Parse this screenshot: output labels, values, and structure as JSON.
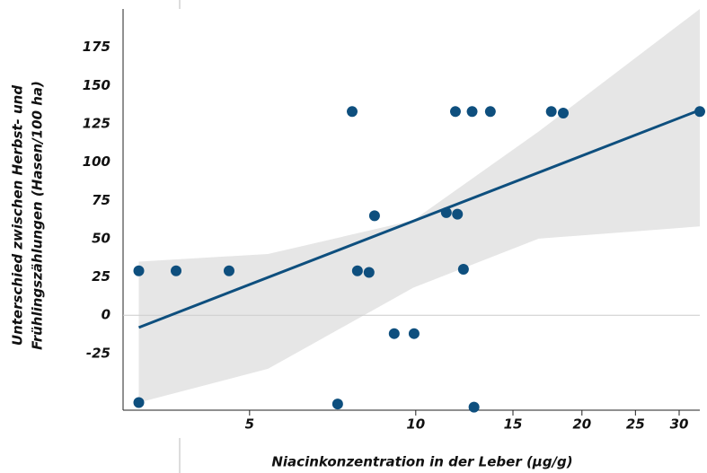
{
  "chart_data": {
    "type": "scatter",
    "xlabel": "Niacinkonzentration in der Leber (µg/g)",
    "ylabel": [
      "Unterschied zwischen Herbst- und",
      "Frühlingszählungen (Hasen/100 ha)"
    ],
    "xscale": "log",
    "xlim": [
      2.95,
      32.7
    ],
    "ylim": [
      -62,
      200
    ],
    "xticks": [
      5,
      10,
      15,
      20,
      25,
      30
    ],
    "yticks": [
      -25,
      0,
      25,
      50,
      75,
      100,
      125,
      150,
      175
    ],
    "color": "#0e4f7e",
    "x": [
      3.15,
      3.68,
      4.59,
      3.15,
      7.67,
      7.22,
      7.84,
      8.23,
      8.42,
      9.14,
      9.93,
      11.36,
      11.8,
      11.9,
      12.2,
      12.65,
      12.75,
      13.65,
      17.6,
      18.5,
      32.7
    ],
    "values": [
      29,
      29,
      29,
      -57,
      133,
      -58,
      29,
      28,
      65,
      -12,
      -12,
      67,
      133,
      66,
      30,
      133,
      -60,
      133,
      133,
      132,
      133
    ],
    "fit": {
      "color": "#0e4f7e",
      "x": [
        3.15,
        32.7
      ],
      "values": [
        -8,
        134
      ]
    },
    "band": {
      "color": "#e6e6e6",
      "x": [
        3.15,
        5.4,
        9.9,
        16.7,
        32.7
      ],
      "upper": [
        35,
        40,
        62,
        120,
        200
      ],
      "lower": [
        -57,
        -35,
        18,
        50,
        58
      ]
    }
  }
}
